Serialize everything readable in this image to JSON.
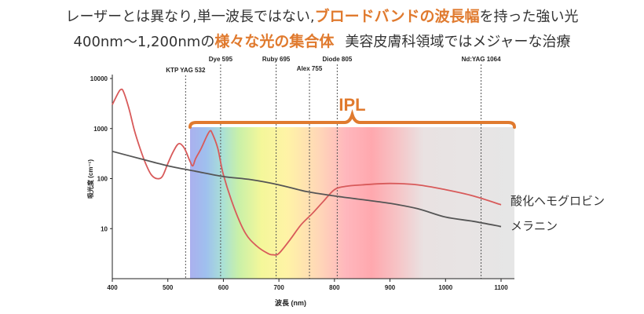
{
  "header": {
    "line1_part1": "レーザーとは異なり,単一波長ではない,",
    "line1_highlight": "ブロードバンドの波長幅",
    "line1_part2": "を持った強い光",
    "line2_part1": "400nm〜1,200nmの",
    "line2_highlight": "様々な光の集合体",
    "line2_part2": "美容皮膚科領域ではメジャーな治療"
  },
  "colors": {
    "accent": "#e07a2e",
    "hemoglobin": "#d85a5a",
    "melanin": "#555555",
    "ipl_background": "#e6e6e6"
  },
  "chart_data": {
    "type": "line",
    "xlabel": "波長 (nm)",
    "ylabel": "吸光度 (cm⁻¹)",
    "xlim": [
      400,
      1100
    ],
    "ylim": [
      1,
      10000
    ],
    "yscale": "log",
    "x_ticks": [
      400,
      500,
      600,
      700,
      800,
      900,
      1000,
      1100
    ],
    "y_ticks": [
      {
        "value": 10000,
        "label": "10000"
      },
      {
        "value": 1000,
        "label": "1000"
      },
      {
        "value": 100,
        "label": "100"
      },
      {
        "value": 10,
        "label": "10"
      }
    ],
    "ipl": {
      "label": "IPL",
      "range": [
        540,
        1100
      ]
    },
    "laser_lines": [
      {
        "name": "KTP YAG 532",
        "wavelength": 532
      },
      {
        "name": "Dye 595",
        "wavelength": 595
      },
      {
        "name": "Ruby 695",
        "wavelength": 695
      },
      {
        "name": "Alex 755",
        "wavelength": 755
      },
      {
        "name": "Diode 805",
        "wavelength": 805
      },
      {
        "name": "Nd:YAG 1064",
        "wavelength": 1064
      }
    ],
    "series": [
      {
        "name": "酸化ヘモグロビン",
        "x": [
          400,
          410,
          415,
          420,
          430,
          440,
          450,
          460,
          470,
          480,
          490,
          500,
          510,
          520,
          530,
          540,
          545,
          550,
          560,
          570,
          576,
          580,
          590,
          600,
          620,
          640,
          660,
          680,
          690,
          700,
          720,
          740,
          760,
          780,
          800,
          820,
          850,
          900,
          950,
          1000,
          1050,
          1100
        ],
        "y": [
          3000,
          5000,
          6000,
          5500,
          2500,
          900,
          400,
          200,
          120,
          100,
          110,
          200,
          350,
          500,
          400,
          220,
          180,
          250,
          400,
          700,
          900,
          800,
          400,
          120,
          25,
          8,
          4.5,
          3.2,
          3.0,
          3.2,
          6,
          12,
          20,
          35,
          60,
          70,
          75,
          80,
          75,
          60,
          45,
          30
        ]
      },
      {
        "name": "メラニン",
        "x": [
          400,
          450,
          500,
          550,
          600,
          650,
          700,
          750,
          800,
          850,
          900,
          950,
          1000,
          1050,
          1100
        ],
        "y": [
          350,
          250,
          180,
          140,
          110,
          95,
          75,
          55,
          45,
          38,
          32,
          25,
          17,
          14,
          11
        ]
      }
    ]
  }
}
